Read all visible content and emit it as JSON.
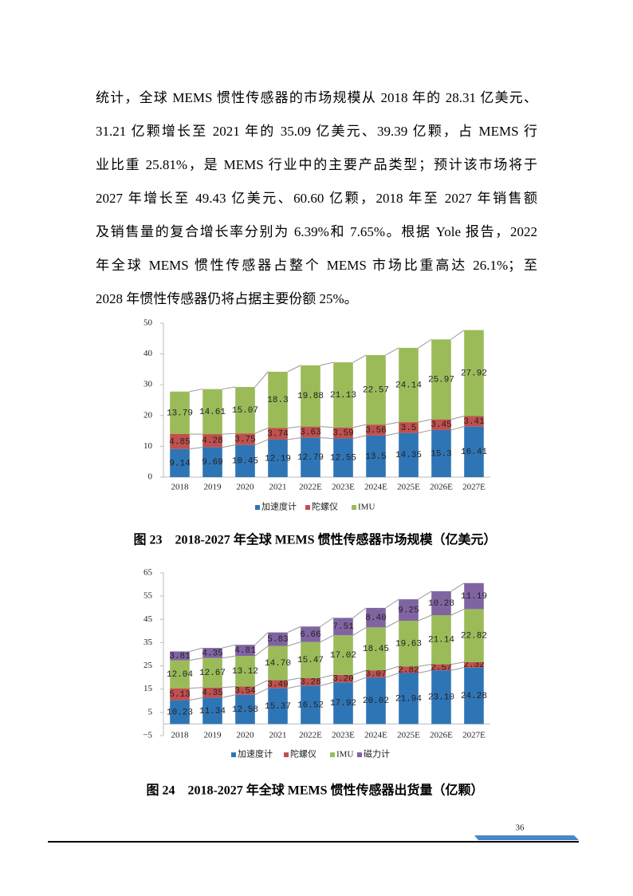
{
  "paragraph": [
    "统计，全球 MEMS 惯性传感器的市场规模从 2018 年的 28.31 亿美元、",
    "31.21 亿颗增长至 2021 年的 35.09 亿美元、39.39 亿颗，占 MEMS 行",
    "业比重 25.81%，是 MEMS 行业中的主要产品类型；预计该市场将于",
    "2027 年增长至 49.43 亿美元、60.60 亿颗，2018 年至 2027 年销售额",
    "及销售量的复合增长率分别为 6.39%和 7.65%。根据 Yole 报告，2022",
    "年全球 MEMS 惯性传感器占整个 MEMS 市场比重高达 26.1%；至",
    "2028 年惯性传感器仍将占据主要份额 25%。"
  ],
  "chart_data": [
    {
      "type": "stacked-bar",
      "caption": "图 23　2018-2027 年全球 MEMS 惯性传感器市场规模（亿美元）",
      "categories": [
        "2018",
        "2019",
        "2020",
        "2021",
        "2022E",
        "2023E",
        "2024E",
        "2025E",
        "2026E",
        "2027E"
      ],
      "series": [
        {
          "name": "加速度计",
          "color": "#2e75b6",
          "values": [
            9.14,
            9.69,
            10.45,
            12.19,
            12.79,
            12.55,
            13.5,
            14.35,
            15.3,
            16.41
          ]
        },
        {
          "name": "陀螺仪",
          "color": "#c0504d",
          "values": [
            4.85,
            4.28,
            3.75,
            3.74,
            3.63,
            3.59,
            3.56,
            3.5,
            3.45,
            3.41
          ]
        },
        {
          "name": "IMU",
          "color": "#9bbb59",
          "values": [
            13.79,
            14.61,
            15.07,
            18.3,
            19.88,
            21.13,
            22.57,
            24.14,
            25.97,
            27.92
          ]
        }
      ],
      "ylim": [
        0,
        50
      ],
      "yticks": [
        0,
        10,
        20,
        30,
        40,
        50
      ],
      "legend": "bottom"
    },
    {
      "type": "stacked-bar",
      "caption": "图 24　2018-2027 年全球 MEMS 惯性传感器出货量（亿颗）",
      "categories": [
        "2018",
        "2019",
        "2020",
        "2021",
        "2022E",
        "2023E",
        "2024E",
        "2025E",
        "2026E",
        "2027E"
      ],
      "series": [
        {
          "name": "加速度计",
          "color": "#2e75b6",
          "values": [
            10.23,
            11.34,
            12.58,
            15.37,
            16.52,
            17.92,
            20.02,
            21.94,
            23.1,
            24.28
          ],
          "value_labels": [
            "10.23",
            "11.34",
            "12.58",
            "15.37",
            "16.52",
            "17.92",
            "20.02",
            "21.94",
            "23.10",
            "24.28"
          ]
        },
        {
          "name": "陀螺仪",
          "color": "#c0504d",
          "values": [
            5.13,
            4.35,
            3.54,
            3.49,
            3.28,
            3.2,
            3.07,
            2.82,
            2.57,
            2.32
          ],
          "value_labels": [
            "5.13",
            "4.35",
            "3.54",
            "3.49",
            "3.28",
            "3.20",
            "3.07",
            "2.82",
            "2.57",
            "2.32"
          ]
        },
        {
          "name": "IMU",
          "color": "#9bbb59",
          "values": [
            12.04,
            12.67,
            13.12,
            14.7,
            15.47,
            17.02,
            18.45,
            19.63,
            21.14,
            22.82
          ],
          "value_labels": [
            "12.04",
            "12.67",
            "13.12",
            "14.70",
            "15.47",
            "17.02",
            "18.45",
            "19.63",
            "21.14",
            "22.82"
          ]
        },
        {
          "name": "磁力计",
          "color": "#8064a2",
          "values": [
            3.81,
            4.35,
            4.81,
            5.83,
            6.66,
            7.51,
            8.4,
            9.25,
            10.28,
            11.19
          ],
          "value_labels": [
            "3.81",
            "4.35",
            "4.81",
            "5.83",
            "6.66",
            "7.51",
            "8.40",
            "9.25",
            "10.28",
            "11.19"
          ]
        }
      ],
      "ylim": [
        -5,
        65
      ],
      "yticks": [
        {
          "value": -5,
          "label": "−5"
        },
        5,
        15,
        25,
        35,
        45,
        55,
        65
      ],
      "legend": "bottom"
    }
  ],
  "page_number": "36"
}
